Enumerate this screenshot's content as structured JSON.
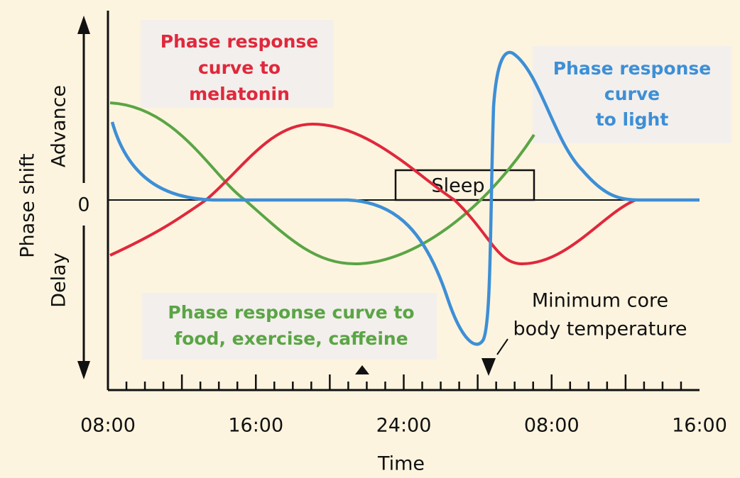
{
  "y_axis": {
    "title": "Phase shift",
    "upper": "Advance",
    "lower": "Delay",
    "zero": "0"
  },
  "x_axis": {
    "title": "Time",
    "ticks": [
      "08:00",
      "16:00",
      "24:00",
      "08:00",
      "16:00"
    ]
  },
  "labels": {
    "melatonin": [
      "Phase response",
      "curve to",
      "melatonin"
    ],
    "light": [
      "Phase response",
      "curve",
      "to light"
    ],
    "food": [
      "Phase response curve to",
      "food, exercise, caffeine"
    ],
    "sleep": "Sleep",
    "temperature": [
      "Minimum core",
      "body temperature"
    ]
  }
}
